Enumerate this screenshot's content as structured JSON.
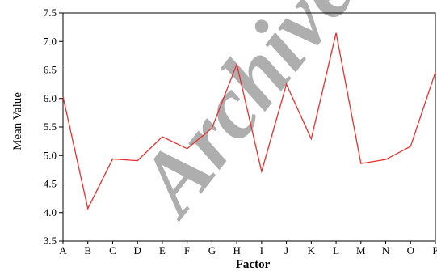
{
  "chart_data": {
    "type": "line",
    "title": "",
    "xlabel": "Factor",
    "ylabel": "Mean Value",
    "categories": [
      "A",
      "B",
      "C",
      "D",
      "E",
      "F",
      "G",
      "H",
      "I",
      "J",
      "K",
      "L",
      "M",
      "N",
      "O",
      "P"
    ],
    "series": [
      {
        "values": [
          6.03,
          4.07,
          4.94,
          4.91,
          5.33,
          5.12,
          5.48,
          6.6,
          4.72,
          6.25,
          5.29,
          7.15,
          4.86,
          4.93,
          5.16,
          6.46
        ]
      }
    ],
    "ylim": [
      3.5,
      7.5
    ],
    "yticks": [
      3.5,
      4.0,
      4.5,
      5.0,
      5.5,
      6.0,
      6.5,
      7.0,
      7.5
    ],
    "ytick_labels": [
      "3.5",
      "4.0",
      "4.5",
      "5.0",
      "5.5",
      "6.0",
      "6.5",
      "7.0",
      "7.5"
    ],
    "grid": false,
    "colors": {
      "line": "#e8302d",
      "axis": "#000000",
      "watermark": "#9a9a9a"
    }
  },
  "watermark": "Archive"
}
